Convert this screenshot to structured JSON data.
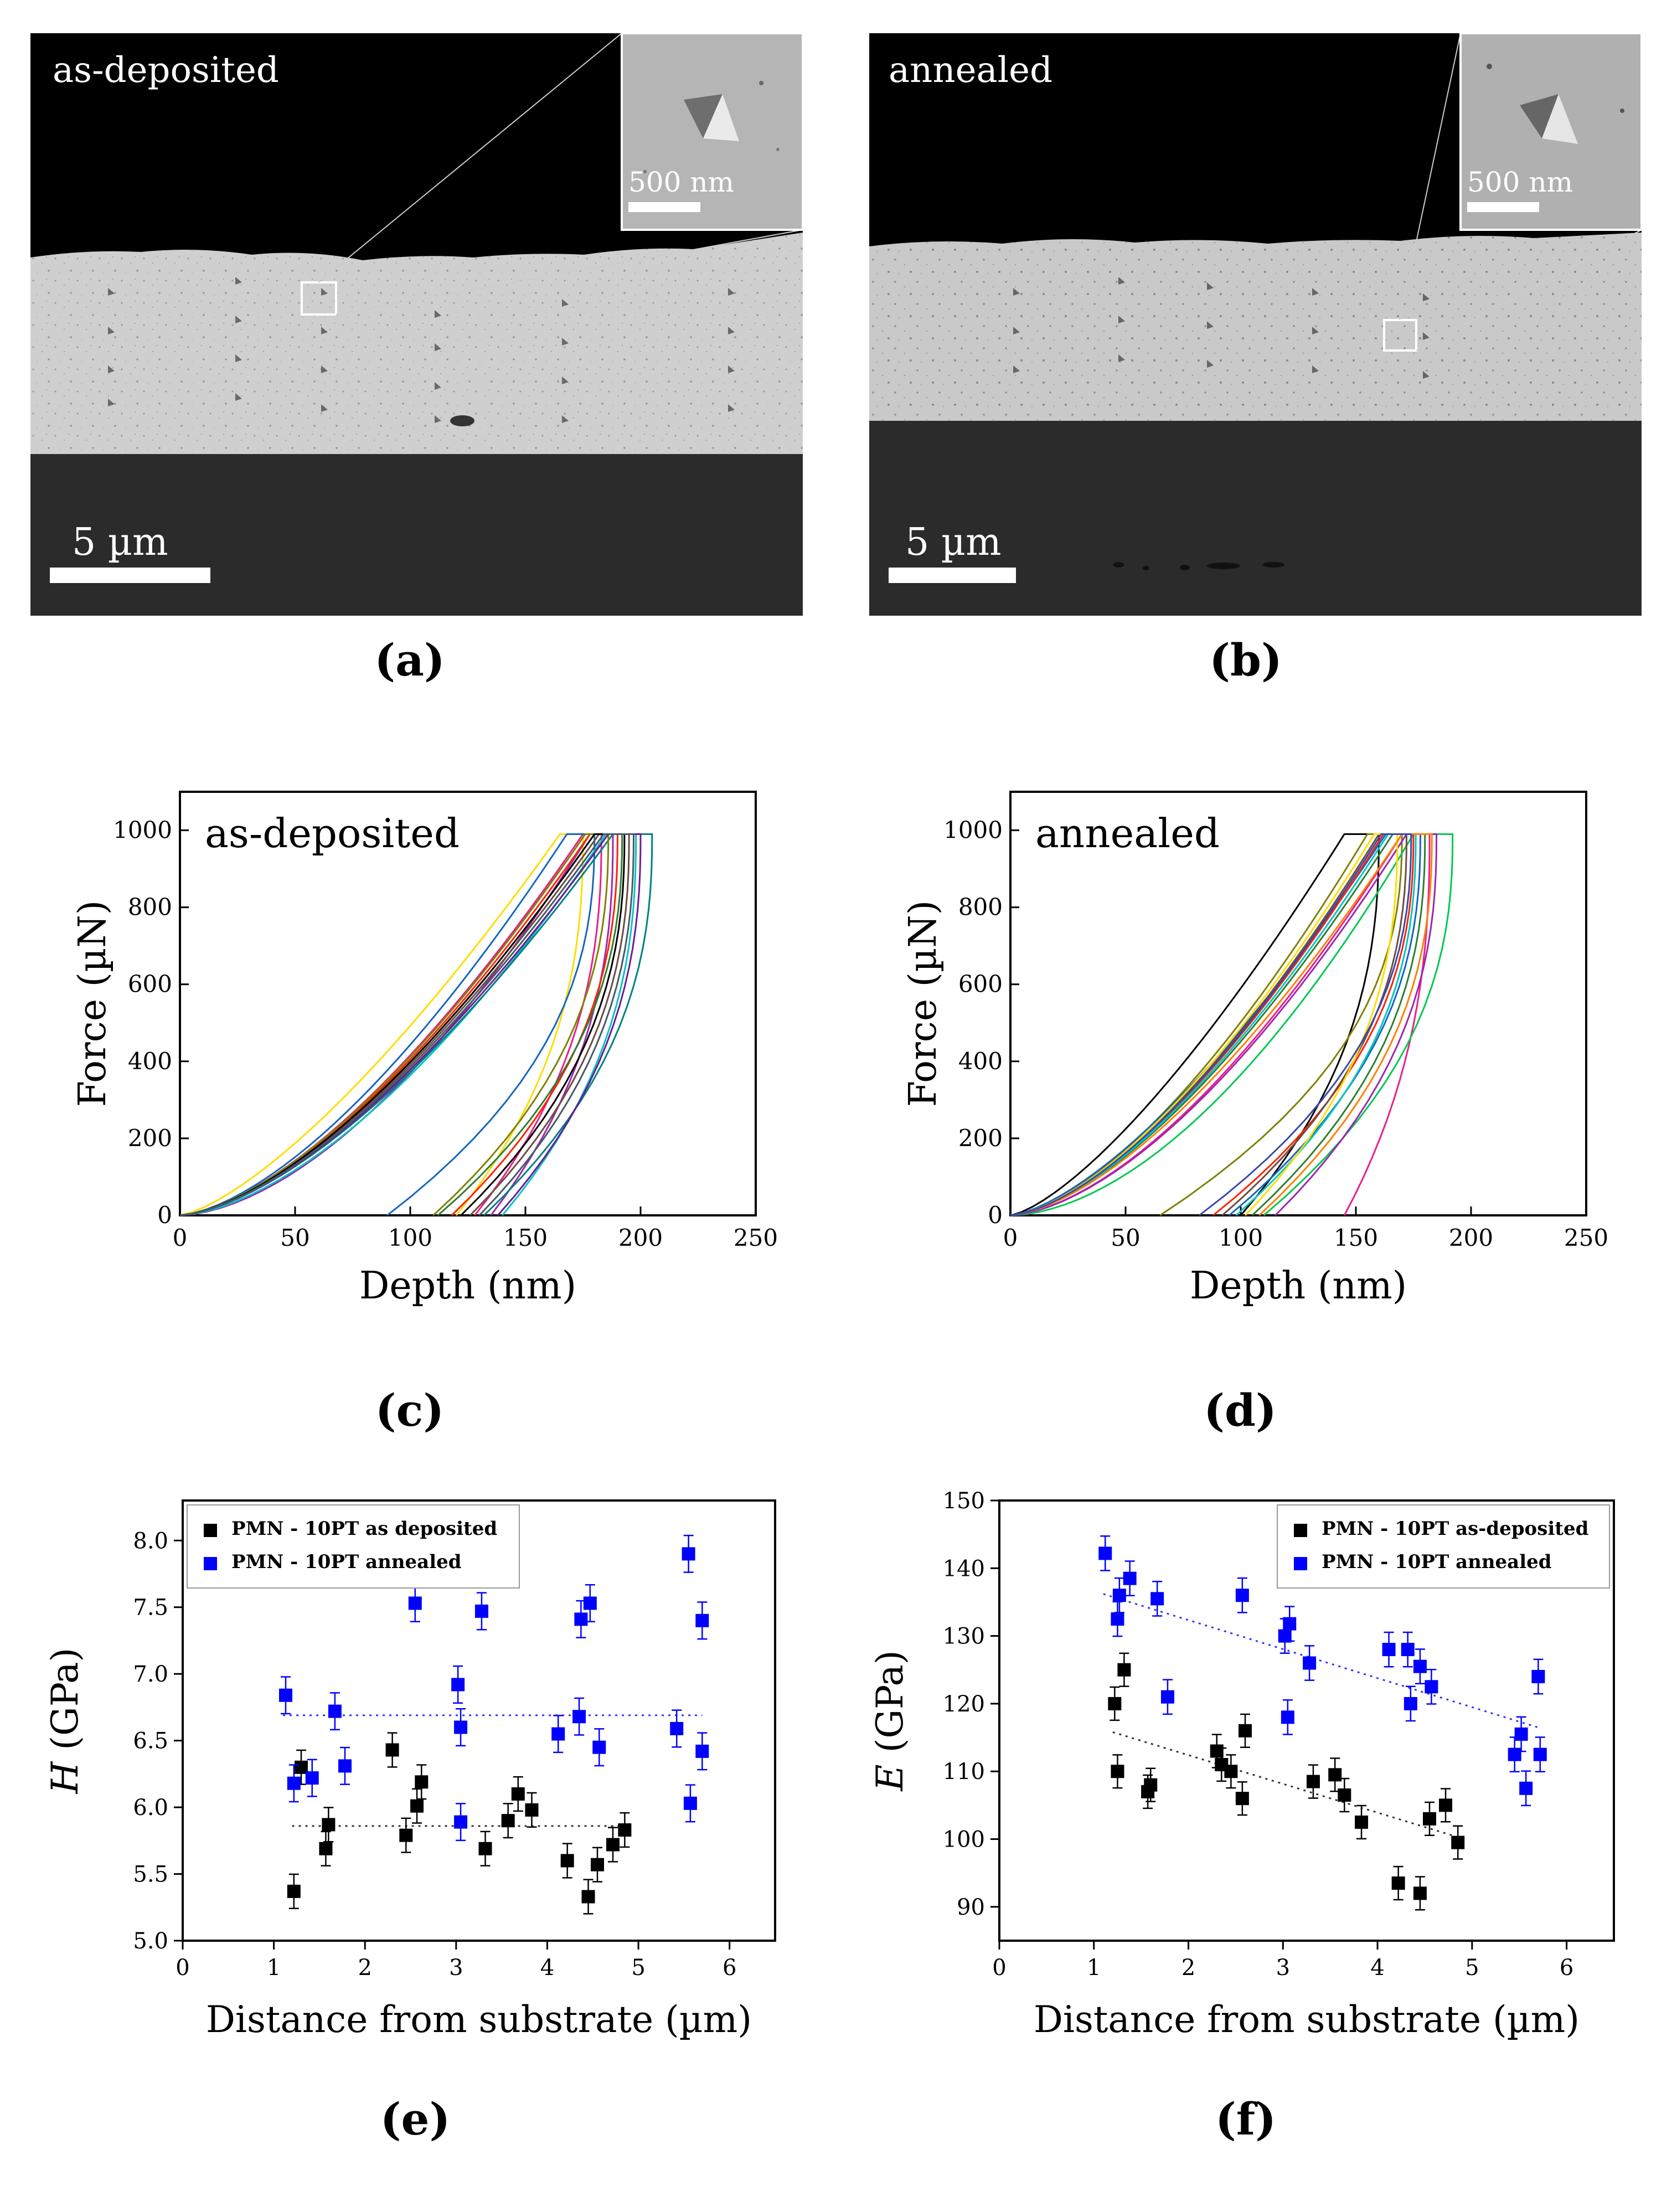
{
  "panels": {
    "a": {
      "label": "(a)",
      "condition": "as-deposited",
      "scalebar": "5 µm",
      "inset_scalebar": "500 nm"
    },
    "b": {
      "label": "(b)",
      "condition": "annealed",
      "scalebar": "5 µm",
      "inset_scalebar": "500 nm"
    },
    "c": {
      "label": "(c)"
    },
    "d": {
      "label": "(d)"
    },
    "e": {
      "label": "(e)"
    },
    "f": {
      "label": "(f)"
    }
  },
  "chart_data": [
    {
      "id": "c",
      "type": "line",
      "annotation": "as-deposited",
      "xlabel": "Depth (nm)",
      "ylabel": "Force (µN)",
      "xlim": [
        0,
        250
      ],
      "ylim": [
        0,
        1100
      ],
      "xticks": [
        0,
        50,
        100,
        150,
        200,
        250
      ],
      "yticks": [
        0,
        200,
        400,
        600,
        800,
        1000
      ],
      "curves": [
        {
          "color": "#ffdd00",
          "pk": 175,
          "ld": 165,
          "res": 120,
          "k": 0.9
        },
        {
          "color": "#e91e8c",
          "pk": 183,
          "ld": 175,
          "res": 128,
          "k": 1.0
        },
        {
          "color": "#9c27b0",
          "pk": 188,
          "ld": 178,
          "res": 135,
          "k": 1.1
        },
        {
          "color": "#1565c0",
          "pk": 180,
          "ld": 168,
          "res": 90,
          "k": 1.0
        },
        {
          "color": "#00c4c4",
          "pk": 198,
          "ld": 185,
          "res": 140,
          "k": 1.05
        },
        {
          "color": "#008080",
          "pk": 205,
          "ld": 188,
          "res": 132,
          "k": 1.0
        },
        {
          "color": "#ff2200",
          "pk": 190,
          "ld": 178,
          "res": 118,
          "k": 1.0
        },
        {
          "color": "#2e7d32",
          "pk": 192,
          "ld": 180,
          "res": 112,
          "k": 1.0
        },
        {
          "color": "#6d4c41",
          "pk": 195,
          "ld": 182,
          "res": 126,
          "k": 1.0
        },
        {
          "color": "#808000",
          "pk": 186,
          "ld": 176,
          "res": 110,
          "k": 1.0
        },
        {
          "color": "#000000",
          "pk": 193,
          "ld": 180,
          "res": 122,
          "k": 1.0
        },
        {
          "color": "#6a1b9a",
          "pk": 200,
          "ld": 186,
          "res": 138,
          "k": 1.0
        },
        {
          "color": "#455a64",
          "pk": 197,
          "ld": 184,
          "res": 130,
          "k": 1.0
        }
      ]
    },
    {
      "id": "d",
      "type": "line",
      "annotation": "annealed",
      "xlabel": "Depth (nm)",
      "ylabel": "Force (µN)",
      "xlim": [
        0,
        250
      ],
      "ylim": [
        0,
        1100
      ],
      "xticks": [
        0,
        50,
        100,
        150,
        200,
        250
      ],
      "yticks": [
        0,
        200,
        400,
        600,
        800,
        1000
      ],
      "curves": [
        {
          "color": "#000000",
          "pk": 160,
          "ld": 145,
          "res": 100,
          "k": 0.9
        },
        {
          "color": "#808000",
          "pk": 170,
          "ld": 155,
          "res": 65,
          "k": 1.0
        },
        {
          "color": "#e91e8c",
          "pk": 182,
          "ld": 170,
          "res": 145,
          "k": 1.05
        },
        {
          "color": "#00c853",
          "pk": 192,
          "ld": 175,
          "res": 110,
          "k": 1.15
        },
        {
          "color": "#1565c0",
          "pk": 178,
          "ld": 163,
          "res": 95,
          "k": 0.95
        },
        {
          "color": "#ff2200",
          "pk": 175,
          "ld": 162,
          "res": 88,
          "k": 1.0
        },
        {
          "color": "#2e7d32",
          "pk": 180,
          "ld": 166,
          "res": 105,
          "k": 1.0
        },
        {
          "color": "#9c27b0",
          "pk": 185,
          "ld": 172,
          "res": 115,
          "k": 1.05
        },
        {
          "color": "#00c4c4",
          "pk": 176,
          "ld": 164,
          "res": 98,
          "k": 1.0
        },
        {
          "color": "#6d4c41",
          "pk": 172,
          "ld": 160,
          "res": 92,
          "k": 1.0
        },
        {
          "color": "#ffdd00",
          "pk": 168,
          "ld": 158,
          "res": 102,
          "k": 1.0
        },
        {
          "color": "#ff7f00",
          "pk": 183,
          "ld": 170,
          "res": 108,
          "k": 1.0
        },
        {
          "color": "#3949ab",
          "pk": 174,
          "ld": 161,
          "res": 82,
          "k": 1.0
        }
      ]
    },
    {
      "id": "e",
      "type": "scatter",
      "xlabel_italic": "",
      "xlabel": "Distance from substrate (µm)",
      "ylabel_italic": "H",
      "ylabel": " (GPa)",
      "xlim": [
        0,
        6.5
      ],
      "ylim": [
        5.0,
        8.3
      ],
      "xticks": [
        0,
        1,
        2,
        3,
        4,
        5,
        6
      ],
      "yticks": [
        5.0,
        5.5,
        6.0,
        6.5,
        7.0,
        7.5,
        8.0
      ],
      "ytick_labels": [
        "5.0",
        "5.5",
        "6.0",
        "6.5",
        "7.0",
        "7.5",
        "8.0"
      ],
      "legend_position": "top-left",
      "series": [
        {
          "name": "PMN - 10PT as deposited",
          "color": "#000000",
          "x": [
            1.22,
            1.3,
            1.57,
            1.6,
            2.3,
            2.45,
            2.57,
            2.62,
            3.32,
            3.57,
            3.68,
            3.83,
            4.22,
            4.45,
            4.55,
            4.72,
            4.85
          ],
          "y": [
            5.37,
            6.3,
            5.69,
            5.87,
            6.43,
            5.79,
            6.01,
            6.19,
            5.69,
            5.9,
            6.1,
            5.98,
            5.6,
            5.33,
            5.57,
            5.72,
            5.83
          ],
          "err": 0.07,
          "trend": [
            [
              1.2,
              5.86
            ],
            [
              4.9,
              5.86
            ]
          ]
        },
        {
          "name": "PMN - 10PT annealed",
          "color": "#0000ff",
          "x": [
            1.13,
            1.22,
            1.42,
            1.67,
            1.78,
            2.55,
            3.02,
            3.05,
            3.05,
            3.28,
            4.12,
            4.35,
            4.37,
            4.47,
            4.57,
            5.42,
            5.55,
            5.57,
            5.7,
            5.7
          ],
          "y": [
            6.84,
            6.18,
            6.22,
            6.72,
            6.31,
            7.53,
            6.92,
            6.6,
            5.89,
            7.47,
            6.55,
            6.68,
            7.41,
            7.53,
            6.45,
            6.59,
            7.9,
            6.03,
            7.4,
            6.42
          ],
          "err": 0.08,
          "trend": [
            [
              1.1,
              6.69
            ],
            [
              5.7,
              6.69
            ]
          ]
        }
      ]
    },
    {
      "id": "f",
      "type": "scatter",
      "xlabel": "Distance from substrate (µm)",
      "ylabel_italic": "E",
      "ylabel": " (GPa)",
      "xlim": [
        0,
        6.5
      ],
      "ylim": [
        85,
        150
      ],
      "xticks": [
        0,
        1,
        2,
        3,
        4,
        5,
        6
      ],
      "yticks": [
        90,
        100,
        110,
        120,
        130,
        140,
        150
      ],
      "ytick_labels": [
        "90",
        "100",
        "110",
        "120",
        "130",
        "140",
        "150"
      ],
      "legend_position": "top-right",
      "series": [
        {
          "name": "PMN - 10PT as-deposited",
          "color": "#000000",
          "x": [
            1.22,
            1.25,
            1.32,
            1.57,
            1.6,
            2.3,
            2.35,
            2.45,
            2.57,
            2.6,
            3.32,
            3.55,
            3.65,
            3.83,
            4.22,
            4.45,
            4.55,
            4.72,
            4.85
          ],
          "y": [
            120,
            110,
            125,
            107,
            108,
            113,
            111,
            110,
            106,
            116,
            108.5,
            109.5,
            106.5,
            102.5,
            93.5,
            92,
            103,
            105,
            99.5
          ],
          "err": 1.3,
          "trend": [
            [
              1.2,
              115.8
            ],
            [
              4.85,
              100.3
            ]
          ]
        },
        {
          "name": "PMN - 10PT annealed",
          "color": "#0000ff",
          "x": [
            1.12,
            1.25,
            1.27,
            1.38,
            1.67,
            1.78,
            2.57,
            3.02,
            3.05,
            3.07,
            3.28,
            4.12,
            4.32,
            4.35,
            4.45,
            4.57,
            5.45,
            5.52,
            5.57,
            5.7,
            5.72
          ],
          "y": [
            142.2,
            132.5,
            136,
            138.5,
            135.5,
            121,
            136,
            130,
            118,
            131.8,
            126,
            128,
            128,
            120,
            125.5,
            122.5,
            112.5,
            115.5,
            107.5,
            124,
            112.5
          ],
          "err": 1.4,
          "trend": [
            [
              1.1,
              136.2
            ],
            [
              5.72,
              116.4
            ]
          ]
        }
      ]
    }
  ]
}
